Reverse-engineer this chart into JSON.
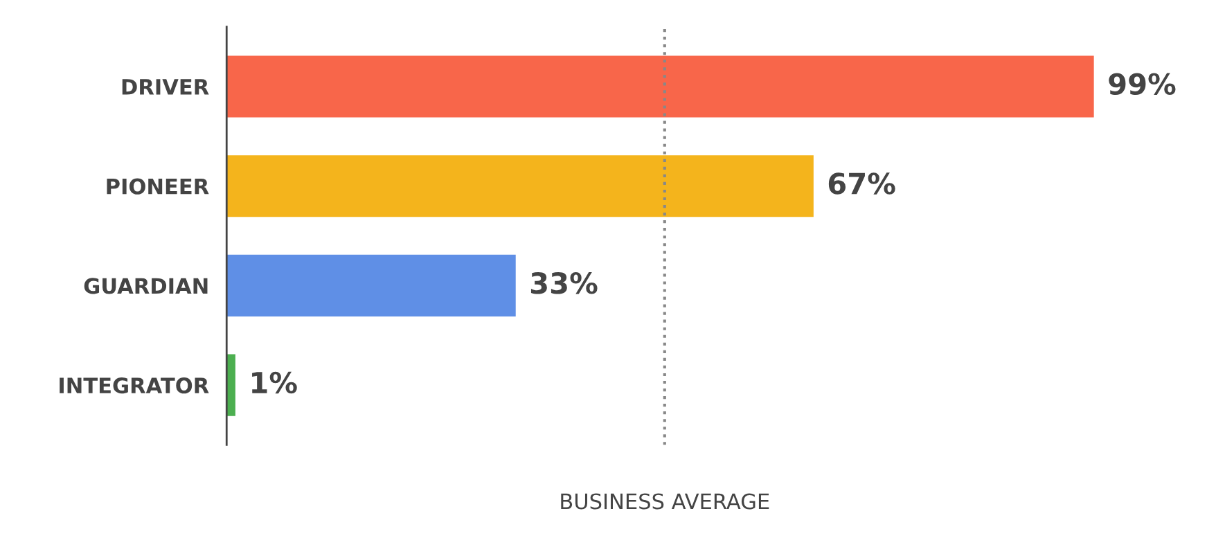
{
  "chart_data": {
    "type": "bar",
    "orientation": "horizontal",
    "categories": [
      "DRIVER",
      "PIONEER",
      "GUARDIAN",
      "INTEGRATOR"
    ],
    "values": [
      99,
      67,
      33,
      1
    ],
    "colors": [
      "#f8664a",
      "#f4b41c",
      "#5f8fe6",
      "#4caf50"
    ],
    "value_labels": [
      "99%",
      "67%",
      "33%",
      "1%"
    ],
    "tick_labels": "y",
    "grid": false,
    "ref_lines": [
      {
        "axis": "x",
        "value": 50,
        "label": "BUSINESS AVERAGE",
        "color": "#888888",
        "line_style": "dotted"
      }
    ]
  }
}
